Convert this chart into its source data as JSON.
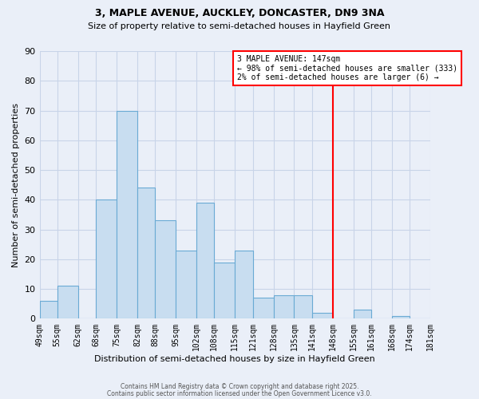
{
  "title_line1": "3, MAPLE AVENUE, AUCKLEY, DONCASTER, DN9 3NA",
  "title_line2": "Size of property relative to semi-detached houses in Hayfield Green",
  "xlabel": "Distribution of semi-detached houses by size in Hayfield Green",
  "ylabel": "Number of semi-detached properties",
  "bin_labels": [
    "49sqm",
    "55sqm",
    "62sqm",
    "68sqm",
    "75sqm",
    "82sqm",
    "88sqm",
    "95sqm",
    "102sqm",
    "108sqm",
    "115sqm",
    "121sqm",
    "128sqm",
    "135sqm",
    "141sqm",
    "148sqm",
    "155sqm",
    "161sqm",
    "168sqm",
    "174sqm",
    "181sqm"
  ],
  "bar_values": [
    6,
    11,
    0,
    40,
    70,
    44,
    33,
    23,
    39,
    19,
    23,
    7,
    8,
    8,
    2,
    0,
    3,
    0,
    1,
    0
  ],
  "bar_color": "#c8ddf0",
  "bar_edge_color": "#6aaad4",
  "grid_color": "#c8d4e8",
  "background_color": "#eaeff8",
  "vline_color": "red",
  "annotation_title": "3 MAPLE AVENUE: 147sqm",
  "annotation_line2": "← 98% of semi-detached houses are smaller (333)",
  "annotation_line3": "2% of semi-detached houses are larger (6) →",
  "ylim": [
    0,
    90
  ],
  "yticks": [
    0,
    10,
    20,
    30,
    40,
    50,
    60,
    70,
    80,
    90
  ],
  "footer_line1": "Contains HM Land Registry data © Crown copyright and database right 2025.",
  "footer_line2": "Contains public sector information licensed under the Open Government Licence v3.0.",
  "bin_edges": [
    49,
    55,
    62,
    68,
    75,
    82,
    88,
    95,
    102,
    108,
    115,
    121,
    128,
    135,
    141,
    148,
    155,
    161,
    168,
    174,
    181
  ]
}
